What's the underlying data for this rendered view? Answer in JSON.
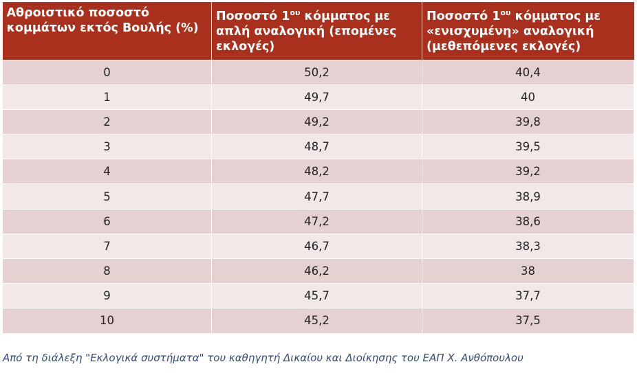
{
  "table": {
    "headers": [
      {
        "main": "Αθροιστικό ποσοστό κομμάτων εκτός Βουλής (%)",
        "sup": "",
        "rest": ""
      },
      {
        "main": "Ποσοστό 1",
        "sup": "ου",
        "rest": " κόμματος με απλή αναλογική (επομένες εκλογές)"
      },
      {
        "main": "Ποσοστό 1",
        "sup": "ου",
        "rest": " κόμματος με «ενισχυμένη» αναλογική (μεθεπόμενες εκλογές)"
      }
    ],
    "rows": [
      [
        "0",
        "50,2",
        "40,4"
      ],
      [
        "1",
        "49,7",
        "40"
      ],
      [
        "2",
        "49,2",
        "39,8"
      ],
      [
        "3",
        "48,7",
        "39,5"
      ],
      [
        "4",
        "48,2",
        "39,2"
      ],
      [
        "5",
        "47,7",
        "38,9"
      ],
      [
        "6",
        "47,2",
        "38,6"
      ],
      [
        "7",
        "46,7",
        "38,3"
      ],
      [
        "8",
        "46,2",
        "38"
      ],
      [
        "9",
        "45,7",
        "37,7"
      ],
      [
        "10",
        "45,2",
        "37,5"
      ]
    ]
  },
  "caption": "Από τη διάλεξη \"Εκλογικά συστήματα\" του καθηγητή Δικαίου και Διοίκησης του ΕΑΠ Χ. Ανθόπουλου",
  "colors": {
    "header_bg": "#a8301c",
    "row_odd": "#e5d1d1",
    "row_even": "#f2e8e8",
    "caption": "#2f4a7a"
  }
}
